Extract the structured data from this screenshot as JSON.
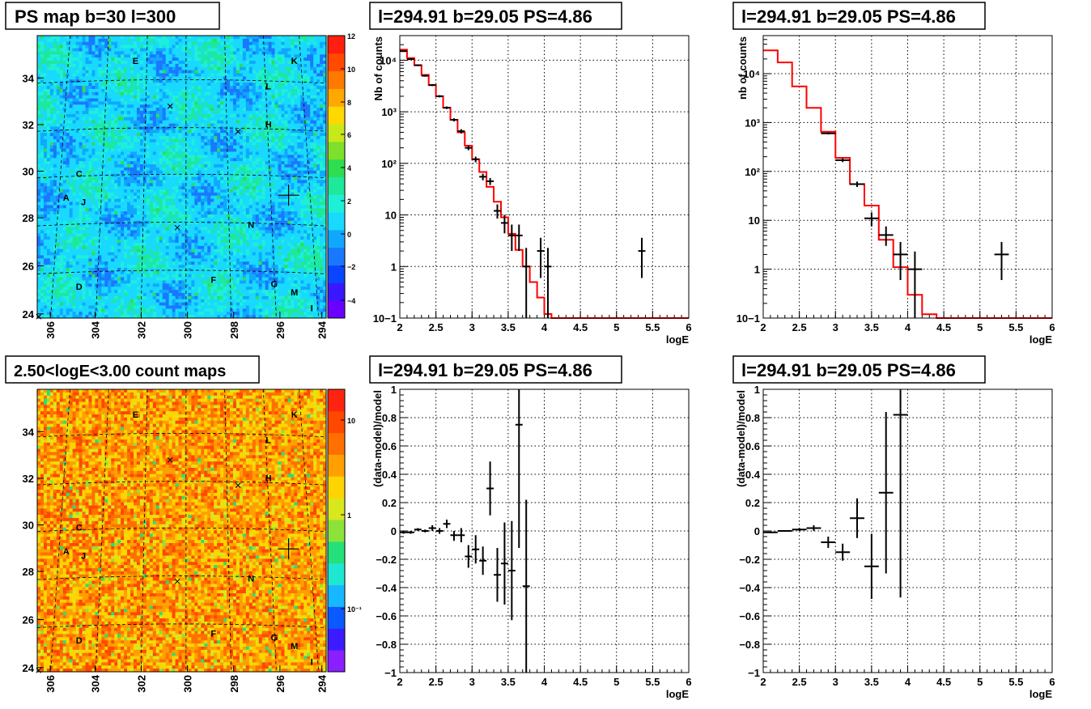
{
  "colors": {
    "model_line": "#ff0000",
    "data_marker": "#000000",
    "frame": "#000000",
    "grid": "#000000",
    "psmap_palette": [
      "#6a00ff",
      "#3a18ff",
      "#0a46ff",
      "#1a78ff",
      "#10a8ff",
      "#19d9ff",
      "#1ef0d8",
      "#1ee89a",
      "#2ede50",
      "#7ee02a",
      "#c8e81a",
      "#ffd800",
      "#ffa800",
      "#ff7a00",
      "#ff4a00",
      "#ff1f10"
    ],
    "countmap_palette": [
      "#8a20ff",
      "#3c1cff",
      "#0a5aff",
      "#17b8ff",
      "#1ee7d2",
      "#25e07a",
      "#8ce23a",
      "#d8e81c",
      "#ffd400",
      "#ffa000",
      "#ff7000",
      "#ff4800",
      "#ff2412"
    ]
  },
  "chart_data": [
    {
      "id": "ps-map",
      "type": "heatmap",
      "title": "PS map b=30 l=300",
      "x_tick_labels": [
        "306",
        "304",
        "302",
        "300",
        "298",
        "296",
        "294"
      ],
      "y_tick_labels": [
        "24",
        "26",
        "28",
        "30",
        "32",
        "34"
      ],
      "colorbar_tick_labels": [
        "12",
        "10",
        "8",
        "6",
        "4",
        "2",
        "0",
        "−2",
        "−4"
      ],
      "colorbar_range": [
        -5,
        12
      ],
      "source_labels": [
        "A",
        "C",
        "D",
        "E",
        "F",
        "G",
        "H",
        "J",
        "K",
        "L",
        "M",
        "N",
        "I"
      ],
      "candidate_marker": "+"
    },
    {
      "id": "spectrum-left",
      "type": "line",
      "title": "l=294.91 b=29.05 PS=4.86",
      "xlabel": "logE",
      "ylabel": "Nb of counts",
      "log_y": true,
      "xlim": [
        2,
        6
      ],
      "ylim": [
        0.1,
        30000
      ],
      "grid": true,
      "x_tick_labels": [
        "2",
        "2.5",
        "3",
        "3.5",
        "4",
        "4.5",
        "5",
        "5.5",
        "6"
      ],
      "y_tick_labels": [
        "10−1",
        "1",
        "10",
        "10²",
        "10³",
        "10⁴"
      ],
      "model_step": {
        "edges": [
          2.0,
          2.1,
          2.2,
          2.3,
          2.4,
          2.5,
          2.6,
          2.7,
          2.8,
          2.9,
          3.0,
          3.1,
          3.2,
          3.3,
          3.4,
          3.5,
          3.6,
          3.7,
          3.8,
          3.9,
          4.0,
          4.1,
          4.2,
          4.3,
          6.0
        ],
        "values": [
          16000,
          11000,
          8000,
          5200,
          3300,
          2000,
          1200,
          700,
          400,
          220,
          120,
          68,
          35,
          18,
          9,
          4.3,
          2.1,
          1.0,
          0.5,
          0.25,
          0.12,
          0.1,
          0.1,
          0.1
        ]
      },
      "points": [
        {
          "x": 2.05,
          "y": 15000,
          "dx": 0.05,
          "lo": 14500,
          "hi": 15500
        },
        {
          "x": 2.15,
          "y": 10500,
          "dx": 0.05,
          "lo": 10100,
          "hi": 10900
        },
        {
          "x": 2.25,
          "y": 8000,
          "dx": 0.05,
          "lo": 7700,
          "hi": 8300
        },
        {
          "x": 2.35,
          "y": 5000,
          "dx": 0.05,
          "lo": 4800,
          "hi": 5200
        },
        {
          "x": 2.45,
          "y": 3300,
          "dx": 0.05,
          "lo": 3150,
          "hi": 3450
        },
        {
          "x": 2.55,
          "y": 2000,
          "dx": 0.05,
          "lo": 1900,
          "hi": 2100
        },
        {
          "x": 2.65,
          "y": 1200,
          "dx": 0.05,
          "lo": 1130,
          "hi": 1270
        },
        {
          "x": 2.75,
          "y": 700,
          "dx": 0.05,
          "lo": 650,
          "hi": 750
        },
        {
          "x": 2.85,
          "y": 420,
          "dx": 0.05,
          "lo": 380,
          "hi": 460
        },
        {
          "x": 2.95,
          "y": 200,
          "dx": 0.05,
          "lo": 180,
          "hi": 220
        },
        {
          "x": 3.05,
          "y": 120,
          "dx": 0.05,
          "lo": 105,
          "hi": 135
        },
        {
          "x": 3.15,
          "y": 55,
          "dx": 0.05,
          "lo": 47,
          "hi": 63
        },
        {
          "x": 3.25,
          "y": 45,
          "dx": 0.05,
          "lo": 38,
          "hi": 52
        },
        {
          "x": 3.35,
          "y": 12,
          "dx": 0.05,
          "lo": 8.5,
          "hi": 16
        },
        {
          "x": 3.45,
          "y": 7,
          "dx": 0.05,
          "lo": 4.4,
          "hi": 10
        },
        {
          "x": 3.55,
          "y": 4,
          "dx": 0.05,
          "lo": 2,
          "hi": 6.5
        },
        {
          "x": 3.65,
          "y": 4,
          "dx": 0.05,
          "lo": 2,
          "hi": 6.5
        },
        {
          "x": 3.75,
          "y": 1,
          "dx": 0.05,
          "lo": 0.1,
          "hi": 2.3
        },
        {
          "x": 3.95,
          "y": 2,
          "dx": 0.05,
          "lo": 0.6,
          "hi": 3.6
        },
        {
          "x": 4.05,
          "y": 1,
          "dx": 0.05,
          "lo": 0.1,
          "hi": 2.3
        },
        {
          "x": 5.35,
          "y": 2,
          "dx": 0.05,
          "lo": 0.6,
          "hi": 3.6
        }
      ]
    },
    {
      "id": "spectrum-right",
      "type": "line",
      "title": "l=294.91 b=29.05 PS=4.86",
      "xlabel": "logE",
      "ylabel": "nb of counts",
      "log_y": true,
      "xlim": [
        2,
        6
      ],
      "ylim": [
        0.1,
        60000
      ],
      "grid": true,
      "x_tick_labels": [
        "2",
        "2.5",
        "3",
        "3.5",
        "4",
        "4.5",
        "5",
        "5.5",
        "6"
      ],
      "y_tick_labels": [
        "10−1",
        "1",
        "10",
        "10²",
        "10³",
        "10⁴"
      ],
      "model_step": {
        "edges": [
          2.0,
          2.2,
          2.4,
          2.6,
          2.8,
          3.0,
          3.2,
          3.4,
          3.6,
          3.8,
          4.0,
          4.2,
          4.4,
          6.0
        ],
        "values": [
          30000,
          17000,
          5500,
          2000,
          650,
          190,
          55,
          20,
          4,
          1.1,
          0.3,
          0.12,
          0.1
        ]
      },
      "points": [
        {
          "x": 2.9,
          "y": 600,
          "dx": 0.1,
          "lo": 570,
          "hi": 630
        },
        {
          "x": 3.1,
          "y": 170,
          "dx": 0.1,
          "lo": 155,
          "hi": 185
        },
        {
          "x": 3.3,
          "y": 55,
          "dx": 0.1,
          "lo": 48,
          "hi": 62
        },
        {
          "x": 3.5,
          "y": 11,
          "dx": 0.1,
          "lo": 7.5,
          "hi": 14.5
        },
        {
          "x": 3.7,
          "y": 5,
          "dx": 0.1,
          "lo": 3,
          "hi": 7.5
        },
        {
          "x": 3.9,
          "y": 2,
          "dx": 0.1,
          "lo": 0.6,
          "hi": 3.6
        },
        {
          "x": 4.1,
          "y": 1,
          "dx": 0.1,
          "lo": 0.1,
          "hi": 2.3
        },
        {
          "x": 5.3,
          "y": 2,
          "dx": 0.1,
          "lo": 0.6,
          "hi": 3.6
        }
      ]
    },
    {
      "id": "count-map",
      "type": "heatmap",
      "title": "2.50<logE<3.00 count maps",
      "x_tick_labels": [
        "306",
        "304",
        "302",
        "300",
        "298",
        "296",
        "294"
      ],
      "y_tick_labels": [
        "24",
        "26",
        "28",
        "30",
        "32",
        "34"
      ],
      "colorbar_tick_labels": [
        "10",
        "1",
        "10⁻¹"
      ],
      "source_labels": [
        "A",
        "C",
        "D",
        "E",
        "F",
        "G",
        "H",
        "J",
        "K",
        "L",
        "M",
        "N",
        "I"
      ],
      "candidate_marker": "+"
    },
    {
      "id": "residual-left",
      "type": "scatter",
      "title": "l=294.91 b=29.05 PS=4.86",
      "xlabel": "logE",
      "ylabel": "(data-model)/model",
      "xlim": [
        2,
        6
      ],
      "ylim": [
        -1,
        1
      ],
      "grid": true,
      "x_tick_labels": [
        "2",
        "2.5",
        "3",
        "3.5",
        "4",
        "4.5",
        "5",
        "5.5",
        "6"
      ],
      "y_tick_labels": [
        "−1",
        "−0.8",
        "−0.6",
        "−0.4",
        "−0.2",
        "0",
        "0.2",
        "0.4",
        "0.6",
        "0.8",
        "1"
      ],
      "points": [
        {
          "x": 2.05,
          "y": -0.01,
          "dx": 0.05,
          "lo": -0.02,
          "hi": 0.0
        },
        {
          "x": 2.15,
          "y": -0.01,
          "dx": 0.05,
          "lo": -0.02,
          "hi": 0.0
        },
        {
          "x": 2.25,
          "y": 0.01,
          "dx": 0.05,
          "lo": 0.0,
          "hi": 0.02
        },
        {
          "x": 2.35,
          "y": 0.0,
          "dx": 0.05,
          "lo": -0.01,
          "hi": 0.01
        },
        {
          "x": 2.45,
          "y": 0.02,
          "dx": 0.05,
          "lo": 0.0,
          "hi": 0.04
        },
        {
          "x": 2.55,
          "y": 0.0,
          "dx": 0.05,
          "lo": -0.02,
          "hi": 0.02
        },
        {
          "x": 2.65,
          "y": 0.05,
          "dx": 0.05,
          "lo": 0.02,
          "hi": 0.08
        },
        {
          "x": 2.75,
          "y": -0.03,
          "dx": 0.05,
          "lo": -0.07,
          "hi": 0.0
        },
        {
          "x": 2.85,
          "y": -0.03,
          "dx": 0.05,
          "lo": -0.08,
          "hi": 0.02
        },
        {
          "x": 2.95,
          "y": -0.18,
          "dx": 0.05,
          "lo": -0.26,
          "hi": -0.1
        },
        {
          "x": 3.05,
          "y": -0.13,
          "dx": 0.05,
          "lo": -0.23,
          "hi": -0.03
        },
        {
          "x": 3.15,
          "y": -0.21,
          "dx": 0.05,
          "lo": -0.31,
          "hi": -0.11
        },
        {
          "x": 3.25,
          "y": 0.3,
          "dx": 0.05,
          "lo": 0.11,
          "hi": 0.49
        },
        {
          "x": 3.35,
          "y": -0.31,
          "dx": 0.05,
          "lo": -0.5,
          "hi": -0.12
        },
        {
          "x": 3.45,
          "y": -0.23,
          "dx": 0.05,
          "lo": -0.52,
          "hi": 0.06
        },
        {
          "x": 3.55,
          "y": -0.28,
          "dx": 0.05,
          "lo": -0.63,
          "hi": 0.07
        },
        {
          "x": 3.65,
          "y": 0.75,
          "dx": 0.05,
          "lo": -0.12,
          "hi": 1.0
        },
        {
          "x": 3.75,
          "y": -0.39,
          "dx": 0.05,
          "lo": -1.0,
          "hi": 0.22
        }
      ]
    },
    {
      "id": "residual-right",
      "type": "scatter",
      "title": "l=294.91 b=29.05 PS=4.86",
      "xlabel": "logE",
      "ylabel": "(data-model)/model",
      "xlim": [
        2,
        6
      ],
      "ylim": [
        -1,
        1
      ],
      "grid": true,
      "x_tick_labels": [
        "2",
        "2.5",
        "3",
        "3.5",
        "4",
        "4.5",
        "5",
        "5.5",
        "6"
      ],
      "y_tick_labels": [
        "−1",
        "−0.8",
        "−0.6",
        "−0.4",
        "−0.2",
        "0",
        "0.2",
        "0.4",
        "0.6",
        "0.8",
        "1"
      ],
      "points": [
        {
          "x": 2.1,
          "y": -0.01,
          "dx": 0.1,
          "lo": -0.015,
          "hi": -0.005
        },
        {
          "x": 2.3,
          "y": 0.0,
          "dx": 0.1,
          "lo": -0.005,
          "hi": 0.005
        },
        {
          "x": 2.5,
          "y": 0.01,
          "dx": 0.1,
          "lo": 0.0,
          "hi": 0.02
        },
        {
          "x": 2.7,
          "y": 0.02,
          "dx": 0.1,
          "lo": 0.0,
          "hi": 0.04
        },
        {
          "x": 2.9,
          "y": -0.08,
          "dx": 0.1,
          "lo": -0.12,
          "hi": -0.04
        },
        {
          "x": 3.1,
          "y": -0.15,
          "dx": 0.1,
          "lo": -0.21,
          "hi": -0.09
        },
        {
          "x": 3.3,
          "y": 0.09,
          "dx": 0.1,
          "lo": -0.05,
          "hi": 0.23
        },
        {
          "x": 3.5,
          "y": -0.25,
          "dx": 0.1,
          "lo": -0.48,
          "hi": -0.02
        },
        {
          "x": 3.7,
          "y": 0.27,
          "dx": 0.1,
          "lo": -0.3,
          "hi": 0.84
        },
        {
          "x": 3.9,
          "y": 0.82,
          "dx": 0.1,
          "lo": -0.47,
          "hi": 1.0
        }
      ]
    }
  ]
}
